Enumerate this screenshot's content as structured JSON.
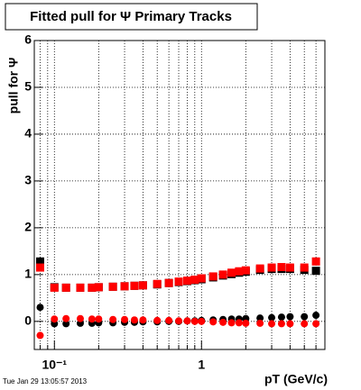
{
  "chart_data": {
    "type": "scatter",
    "title": "Fitted pull for Ψ  Primary Tracks",
    "y_label": "pull for Ψ",
    "x_label": "pT (GeV/c)",
    "timestamp": "Tue Jan 29 13:05:57 2013",
    "log_x": true,
    "grid": true,
    "xlim": [
      0.073,
      6.9
    ],
    "ylim": [
      -0.6,
      6
    ],
    "xticks": [
      {
        "value": 0.1,
        "label": "10⁻¹"
      },
      1
    ],
    "xminorticks": [
      0.08,
      0.09,
      0.2,
      0.3,
      0.4,
      0.5,
      0.6,
      0.7,
      0.8,
      0.9,
      2,
      3,
      4,
      5,
      6
    ],
    "yticks": [
      0,
      1,
      2,
      3,
      4,
      5,
      6
    ],
    "x": [
      0.08,
      0.1,
      0.12,
      0.15,
      0.18,
      0.2,
      0.25,
      0.3,
      0.35,
      0.4,
      0.5,
      0.6,
      0.7,
      0.8,
      0.9,
      1.0,
      1.2,
      1.4,
      1.6,
      1.8,
      2.0,
      2.5,
      3.0,
      3.5,
      4.0,
      5.0,
      6.0
    ],
    "series": [
      {
        "color": "#000000",
        "marker": "square",
        "values": [
          1.28,
          0.73,
          0.72,
          0.72,
          0.72,
          0.73,
          0.74,
          0.75,
          0.76,
          0.77,
          0.79,
          0.82,
          0.84,
          0.86,
          0.88,
          0.9,
          0.94,
          0.98,
          1.01,
          1.04,
          1.06,
          1.1,
          1.12,
          1.12,
          1.12,
          1.1,
          1.08
        ]
      },
      {
        "color": "#ff0000",
        "marker": "square",
        "values": [
          1.15,
          0.72,
          0.72,
          0.72,
          0.72,
          0.73,
          0.74,
          0.75,
          0.76,
          0.77,
          0.8,
          0.82,
          0.85,
          0.87,
          0.89,
          0.92,
          0.96,
          1.0,
          1.04,
          1.07,
          1.09,
          1.13,
          1.15,
          1.16,
          1.15,
          1.15,
          1.28
        ]
      },
      {
        "color": "#000000",
        "marker": "circle",
        "values": [
          0.3,
          -0.05,
          -0.05,
          -0.04,
          -0.04,
          -0.03,
          -0.03,
          -0.02,
          -0.02,
          -0.01,
          -0.01,
          0.0,
          0.0,
          0.01,
          0.01,
          0.02,
          0.03,
          0.04,
          0.05,
          0.05,
          0.06,
          0.07,
          0.08,
          0.09,
          0.1,
          0.1,
          0.13
        ]
      },
      {
        "color": "#ff0000",
        "marker": "circle",
        "values": [
          -0.3,
          0.05,
          0.06,
          0.06,
          0.05,
          0.05,
          0.04,
          0.04,
          0.03,
          0.03,
          0.02,
          0.02,
          0.01,
          0.01,
          0.0,
          0.0,
          -0.01,
          -0.02,
          -0.03,
          -0.03,
          -0.04,
          -0.04,
          -0.05,
          -0.05,
          -0.05,
          -0.05,
          -0.05
        ]
      }
    ]
  }
}
